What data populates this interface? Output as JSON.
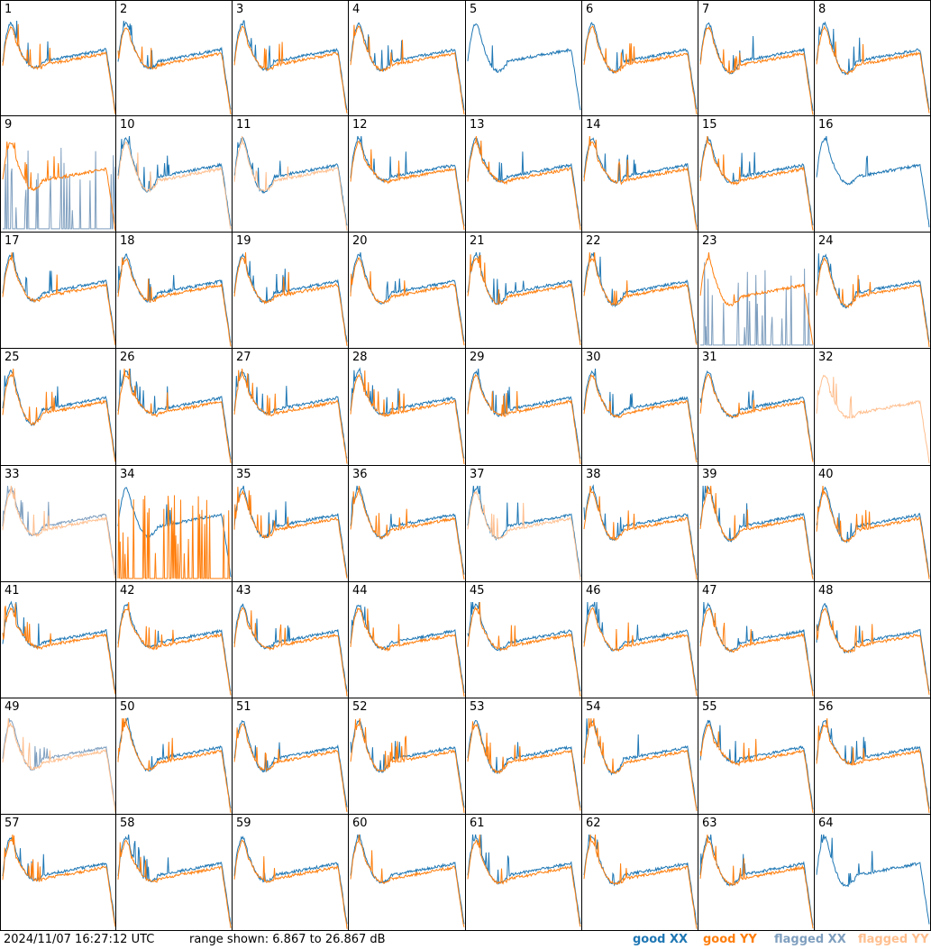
{
  "chart_data": {
    "type": "line",
    "title": "",
    "panels": [
      "1",
      "2",
      "3",
      "4",
      "5",
      "6",
      "7",
      "8",
      "9",
      "10",
      "11",
      "12",
      "13",
      "14",
      "15",
      "16",
      "17",
      "18",
      "19",
      "20",
      "21",
      "22",
      "23",
      "24",
      "25",
      "26",
      "27",
      "28",
      "29",
      "30",
      "31",
      "32",
      "33",
      "34",
      "35",
      "36",
      "37",
      "38",
      "39",
      "40",
      "41",
      "42",
      "43",
      "44",
      "45",
      "46",
      "47",
      "48",
      "49",
      "50",
      "51",
      "52",
      "53",
      "54",
      "55",
      "56",
      "57",
      "58",
      "59",
      "60",
      "61",
      "62",
      "63",
      "64"
    ],
    "panel_status": {
      "xx_flagged": [
        "9",
        "23",
        "33",
        "49"
      ],
      "yy_flagged": [
        "10",
        "11",
        "32",
        "33",
        "37",
        "49"
      ],
      "xx_missing": [
        "32"
      ],
      "yy_missing": [
        "5",
        "16",
        "64"
      ]
    },
    "y_range_db": [
      6.867,
      26.867
    ],
    "series": [
      {
        "name": "good XX",
        "color": "#1f77b4"
      },
      {
        "name": "good YY",
        "color": "#ff7f0e"
      },
      {
        "name": "flagged XX",
        "color": "#7f9fbf"
      },
      {
        "name": "flagged YY",
        "color": "#ffbf8f"
      }
    ]
  },
  "footer": {
    "timestamp": "2024/11/07 16:27:12 UTC",
    "range_text": "range shown: 6.867 to 26.867 dB"
  },
  "legend": {
    "good_xx": "good XX",
    "good_yy": "good YY",
    "flagged_xx": "flagged XX",
    "flagged_yy": "flagged YY"
  }
}
